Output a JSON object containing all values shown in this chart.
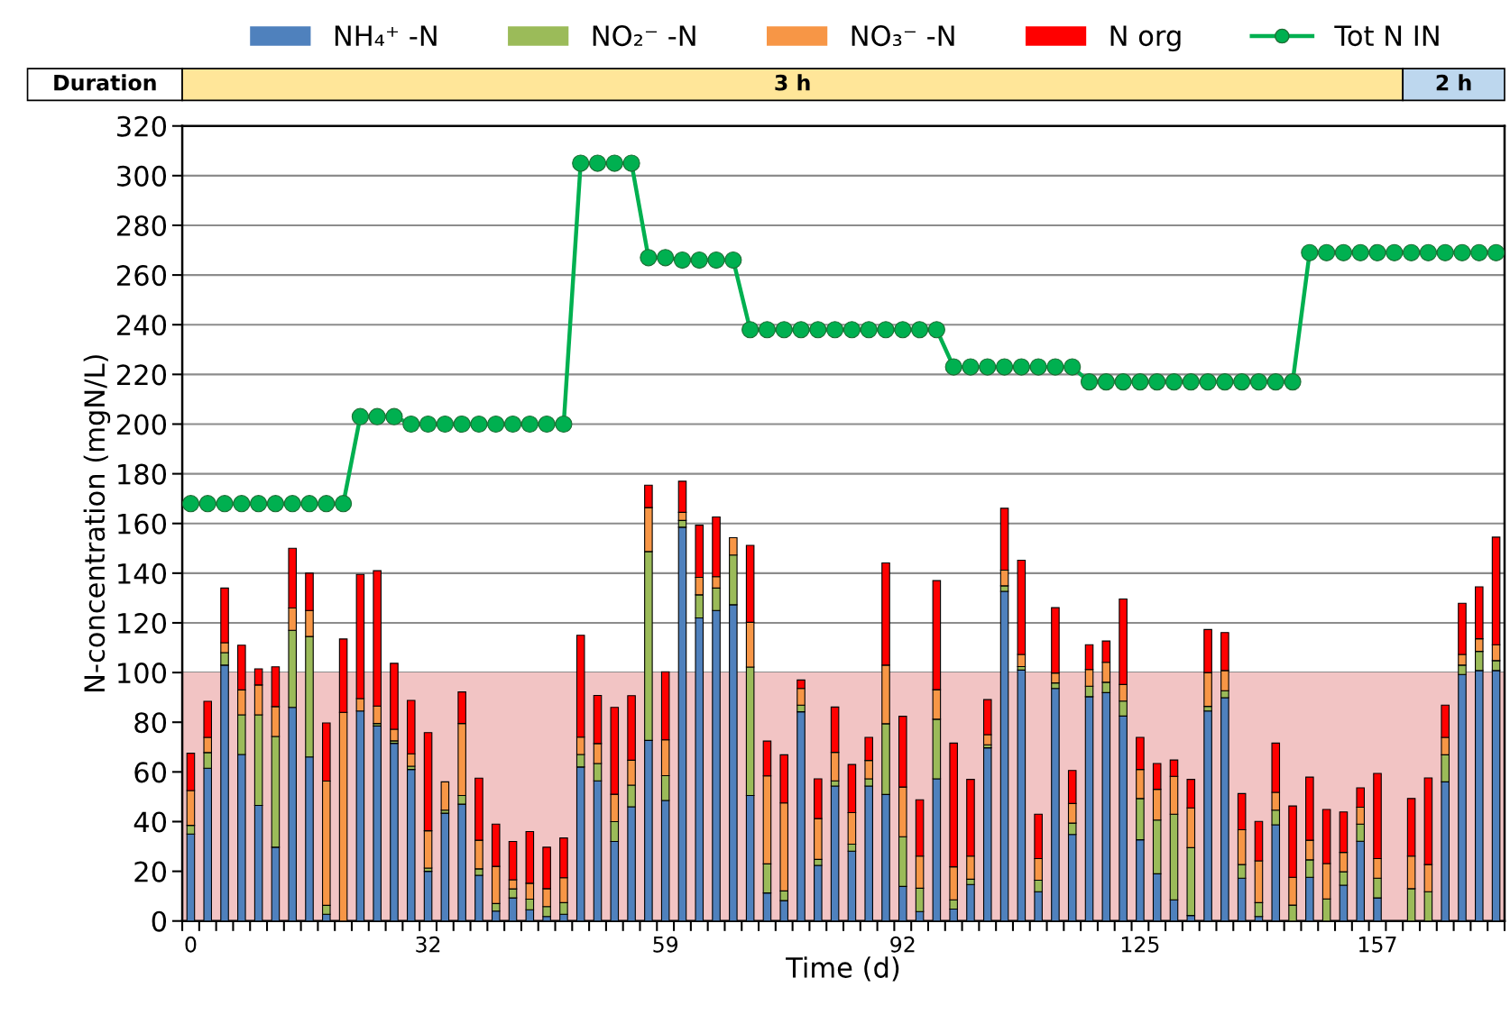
{
  "chart_data": {
    "type": "bar",
    "stacked": true,
    "xlabel": "Time (d)",
    "ylabel": "N-concentration (mgN/L)",
    "categories": [
      "0",
      null,
      null,
      null,
      null,
      null,
      null,
      null,
      null,
      null,
      null,
      null,
      null,
      null,
      "32",
      null,
      null,
      null,
      null,
      null,
      null,
      null,
      null,
      null,
      null,
      null,
      null,
      null,
      "59",
      null,
      null,
      null,
      null,
      null,
      null,
      null,
      null,
      null,
      null,
      null,
      null,
      null,
      "92",
      null,
      null,
      null,
      null,
      null,
      null,
      null,
      null,
      null,
      null,
      null,
      null,
      null,
      "125",
      null,
      null,
      null,
      null,
      null,
      null,
      null,
      null,
      null,
      null,
      null,
      null,
      null,
      "157",
      null,
      null,
      null,
      null,
      null,
      null,
      null
    ],
    "series": [
      {
        "name": "NH₄⁺ -N",
        "color": "#4f81bd",
        "values": [
          35,
          61.5,
          103,
          67,
          46.5,
          29.7,
          86,
          66,
          2.7,
          0,
          84.5,
          78.5,
          71.5,
          61,
          20,
          43.4,
          47,
          18.4,
          4,
          9.3,
          4.5,
          1.8,
          2.7,
          62,
          56.4,
          32,
          46,
          72.7,
          48.5,
          158.5,
          122,
          125,
          127.3,
          50.5,
          11.3,
          8.2,
          84.2,
          22.4,
          54.3,
          28.1,
          54.3,
          50.9,
          13.9,
          3.8,
          57.2,
          4.8,
          14.7,
          69.7,
          132.7,
          101,
          11.8,
          93.6,
          34.8,
          90.3,
          91.9,
          82.5,
          32.7,
          19,
          8.5,
          2.2,
          84.5,
          89.9,
          17.2,
          1.8,
          38.7,
          null,
          17.6,
          null,
          14.4,
          32.1,
          9.3,
          null,
          0,
          0,
          56,
          99.2,
          100.8,
          100.8
        ]
      },
      {
        "name": "NO₂⁻ -N",
        "color": "#9bbb59",
        "values": [
          3.5,
          6.3,
          5,
          16,
          36.5,
          44.6,
          31,
          48.5,
          3.6,
          0,
          null,
          1,
          1,
          1.3,
          1.3,
          1.2,
          3.5,
          2.6,
          3,
          3.6,
          4.3,
          4,
          4.7,
          5,
          7,
          8,
          8.7,
          76,
          10,
          2.7,
          9.3,
          9,
          20,
          51.7,
          11.7,
          3.9,
          2.7,
          2.4,
          2.1,
          2.8,
          2.9,
          28.5,
          20,
          9.4,
          24,
          3.7,
          2.1,
          1.2,
          2.2,
          1.4,
          4.6,
          2.2,
          4.6,
          4.2,
          4.2,
          6,
          16.6,
          21.6,
          34.5,
          27.3,
          1.9,
          2.8,
          5.5,
          5.6,
          5.9,
          6.4,
          7,
          8.9,
          5.4,
          6.9,
          7.9,
          null,
          13,
          11.8,
          10.9,
          3.8,
          7.7,
          4
        ]
      },
      {
        "name": "NO₃⁻ -N",
        "color": "#f79646",
        "values": [
          14,
          6.1,
          4,
          10,
          12,
          12,
          9,
          10.5,
          50,
          84,
          5,
          7,
          4.7,
          5,
          15,
          11.4,
          29,
          11.5,
          15,
          3.7,
          6.4,
          7.2,
          10,
          7,
          8,
          11,
          10,
          17.7,
          14.4,
          3.3,
          7,
          4.6,
          7,
          18,
          35.4,
          35.4,
          6.7,
          16.4,
          11.5,
          12.7,
          7.4,
          23.6,
          20,
          12.9,
          11.9,
          13.3,
          9.3,
          4.1,
          6.3,
          4.9,
          8.7,
          4,
          7.9,
          6.7,
          8,
          6.7,
          11.7,
          12.4,
          15.2,
          16,
          13.6,
          8.1,
          14,
          16.8,
          7.2,
          11.2,
          7.9,
          14.2,
          7.8,
          6.8,
          7.9,
          null,
          13.1,
          10.9,
          7,
          4.3,
          5.1,
          6.4
        ]
      },
      {
        "name": "N org",
        "color": "#ff0000",
        "values": [
          15,
          14.5,
          22,
          18,
          6.5,
          16,
          24,
          15,
          23.4,
          29.5,
          50,
          54.5,
          26.5,
          21.5,
          39.5,
          0,
          12.7,
          25,
          17,
          15.4,
          20.8,
          16.7,
          16,
          41,
          19.4,
          35,
          26,
          9,
          27.4,
          12.5,
          21,
          24,
          0,
          31,
          14,
          19.4,
          3.4,
          16,
          18.2,
          19.4,
          9.3,
          41.1,
          28.5,
          22.7,
          43.9,
          49.8,
          30.9,
          14.1,
          24.9,
          37.9,
          17.9,
          26.3,
          13.3,
          10,
          8.6,
          34.4,
          12.9,
          10.4,
          6.6,
          11.5,
          17.3,
          15.3,
          14.6,
          15.9,
          19.8,
          28.7,
          25.4,
          21.8,
          16.3,
          7.8,
          34.3,
          null,
          23.2,
          34.9,
          13,
          20.6,
          20.9,
          43.3
        ]
      },
      {
        "name": "Tot N IN",
        "type": "line",
        "color": "#00b050",
        "marker": "circle",
        "line_style": "solid",
        "values": [
          168,
          168,
          168,
          168,
          168,
          168,
          168,
          168,
          168,
          168,
          203,
          203,
          203,
          200,
          200,
          200,
          200,
          200,
          200,
          200,
          200,
          200,
          200,
          305,
          305,
          305,
          305,
          267,
          267,
          266,
          266,
          266,
          266,
          238,
          238,
          238,
          238,
          238,
          238,
          238,
          238,
          238,
          238,
          238,
          238,
          223,
          223,
          223,
          223,
          223,
          223,
          223,
          223,
          217,
          217,
          217,
          217,
          217,
          217,
          217,
          217,
          217,
          217,
          217,
          217,
          217,
          269,
          269,
          269,
          269,
          269,
          269,
          269,
          269,
          269,
          269,
          269,
          269
        ]
      }
    ],
    "ylim": [
      0,
      320
    ],
    "yticks": [
      0,
      20,
      40,
      60,
      80,
      100,
      120,
      140,
      160,
      180,
      200,
      220,
      240,
      260,
      280,
      300,
      320
    ],
    "grid": "y",
    "legend": "top",
    "bands": [
      {
        "axis": "y",
        "from": 0,
        "to": 100,
        "color": "#f2c4c4"
      }
    ],
    "annotations": [
      "Duration",
      "3 h",
      "2 h"
    ]
  }
}
